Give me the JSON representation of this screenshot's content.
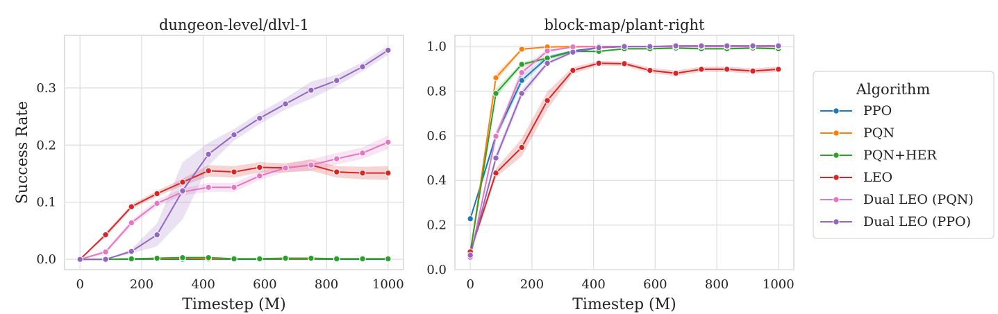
{
  "chart_data": [
    {
      "type": "line",
      "title": "dungeon-level/dlvl-1",
      "xlabel": "Timestep (M)",
      "ylabel": "Success Rate",
      "xlim": [
        -50,
        1050
      ],
      "ylim": [
        -0.018,
        0.392
      ],
      "xticks": [
        0,
        200,
        400,
        600,
        800,
        1000
      ],
      "yticks": [
        0.0,
        0.1,
        0.2,
        0.3
      ],
      "xtick_labels": [
        "0",
        "200",
        "400",
        "600",
        "800",
        "1000"
      ],
      "ytick_labels": [
        "0.0",
        "0.1",
        "0.2",
        "0.3"
      ],
      "grid": true,
      "x": [
        0,
        83,
        167,
        250,
        333,
        417,
        500,
        583,
        667,
        750,
        833,
        917,
        1000
      ],
      "series": [
        {
          "name": "PPO",
          "values": [
            0,
            0,
            0,
            0,
            0,
            0,
            0,
            0,
            0,
            0,
            0,
            0,
            0
          ],
          "band": [
            0,
            0,
            0,
            0,
            0,
            0,
            0,
            0,
            0,
            0,
            0,
            0,
            0
          ]
        },
        {
          "name": "PQN",
          "values": [
            0,
            0,
            0.001,
            0.001,
            0.002,
            0.001,
            0.001,
            0.001,
            0.001,
            0.001,
            0.001,
            0.001,
            0.001
          ],
          "band": [
            0,
            0,
            0.001,
            0.001,
            0.001,
            0.001,
            0.001,
            0.001,
            0.001,
            0.001,
            0.001,
            0.001,
            0.001
          ]
        },
        {
          "name": "PQN+HER",
          "values": [
            0,
            0,
            0.001,
            0.002,
            0.003,
            0.003,
            0.001,
            0.001,
            0.002,
            0.002,
            0.001,
            0.001,
            0.001
          ],
          "band": [
            0,
            0,
            0.001,
            0.001,
            0.002,
            0.002,
            0.001,
            0.001,
            0.001,
            0.001,
            0.001,
            0.001,
            0.001
          ]
        },
        {
          "name": "LEO",
          "values": [
            0,
            0.043,
            0.092,
            0.115,
            0.135,
            0.155,
            0.153,
            0.161,
            0.16,
            0.165,
            0.153,
            0.151,
            0.151
          ],
          "band": [
            0,
            0.004,
            0.004,
            0.005,
            0.006,
            0.01,
            0.01,
            0.009,
            0.008,
            0.01,
            0.01,
            0.011,
            0.012
          ]
        },
        {
          "name": "Dual LEO (PQN)",
          "values": [
            0,
            0.013,
            0.064,
            0.098,
            0.118,
            0.126,
            0.126,
            0.146,
            0.16,
            0.165,
            0.176,
            0.186,
            0.205
          ],
          "band": [
            0,
            0.004,
            0.005,
            0.006,
            0.006,
            0.008,
            0.008,
            0.007,
            0.007,
            0.01,
            0.01,
            0.01,
            0.012
          ]
        },
        {
          "name": "Dual LEO (PPO)",
          "values": [
            0,
            0,
            0.014,
            0.043,
            0.12,
            0.184,
            0.218,
            0.247,
            0.272,
            0.296,
            0.313,
            0.337,
            0.366
          ],
          "band": [
            0,
            0,
            0.004,
            0.02,
            0.05,
            0.02,
            0.01,
            0.01,
            0.01,
            0.015,
            0.01,
            0.008,
            0.008
          ]
        }
      ]
    },
    {
      "type": "line",
      "title": "block-map/plant-right",
      "xlabel": "Timestep (M)",
      "ylabel": "",
      "xlim": [
        -50,
        1050
      ],
      "ylim": [
        0.0,
        1.05
      ],
      "xticks": [
        0,
        200,
        400,
        600,
        800,
        1000
      ],
      "yticks": [
        0.0,
        0.2,
        0.4,
        0.6,
        0.8,
        1.0
      ],
      "xtick_labels": [
        "0",
        "200",
        "400",
        "600",
        "800",
        "1000"
      ],
      "ytick_labels": [
        "0.0",
        "0.2",
        "0.4",
        "0.6",
        "0.8",
        "1.0"
      ],
      "grid": true,
      "x": [
        0,
        83,
        167,
        250,
        333,
        417,
        500,
        583,
        667,
        750,
        833,
        917,
        1000
      ],
      "series": [
        {
          "name": "PPO",
          "values": [
            0.228,
            0.6,
            0.848,
            0.95,
            0.98,
            0.995,
            1.0,
            1.0,
            1.0,
            1.0,
            1.0,
            1.0,
            1.0
          ],
          "band": [
            0.005,
            0.02,
            0.02,
            0.01,
            0.005,
            0.003,
            0.002,
            0.002,
            0.002,
            0.002,
            0.002,
            0.002,
            0.002
          ]
        },
        {
          "name": "PQN",
          "values": [
            0.07,
            0.86,
            0.988,
            0.998,
            1.0,
            1.0,
            1.0,
            1.0,
            1.0,
            1.0,
            1.0,
            1.0,
            1.0
          ],
          "band": [
            0.005,
            0.02,
            0.005,
            0.002,
            0.002,
            0.002,
            0.002,
            0.002,
            0.002,
            0.002,
            0.002,
            0.002,
            0.002
          ]
        },
        {
          "name": "PQN+HER",
          "values": [
            0.08,
            0.79,
            0.92,
            0.948,
            0.978,
            0.978,
            0.99,
            0.99,
            0.993,
            0.99,
            0.99,
            0.993,
            0.99
          ],
          "band": [
            0.005,
            0.02,
            0.01,
            0.008,
            0.005,
            0.005,
            0.004,
            0.004,
            0.004,
            0.004,
            0.004,
            0.004,
            0.004
          ]
        },
        {
          "name": "LEO",
          "values": [
            0.08,
            0.433,
            0.548,
            0.758,
            0.893,
            0.925,
            0.923,
            0.893,
            0.88,
            0.898,
            0.898,
            0.89,
            0.898
          ],
          "band": [
            0.01,
            0.02,
            0.04,
            0.04,
            0.015,
            0.01,
            0.01,
            0.012,
            0.012,
            0.012,
            0.012,
            0.012,
            0.012
          ]
        },
        {
          "name": "Dual LEO (PQN)",
          "values": [
            0.055,
            0.598,
            0.883,
            0.98,
            0.998,
            1.0,
            1.0,
            1.0,
            1.0,
            1.0,
            1.0,
            1.0,
            1.0
          ],
          "band": [
            0.005,
            0.02,
            0.02,
            0.01,
            0.003,
            0.002,
            0.002,
            0.002,
            0.002,
            0.002,
            0.002,
            0.002,
            0.002
          ]
        },
        {
          "name": "Dual LEO (PPO)",
          "values": [
            0.065,
            0.5,
            0.79,
            0.925,
            0.975,
            0.995,
            1.0,
            1.0,
            1.003,
            1.003,
            1.003,
            1.003,
            1.003
          ],
          "band": [
            0.005,
            0.02,
            0.02,
            0.01,
            0.005,
            0.003,
            0.002,
            0.002,
            0.002,
            0.002,
            0.002,
            0.002,
            0.002
          ]
        }
      ]
    }
  ],
  "legend": {
    "title": "Algorithm",
    "placement": "right",
    "entries": [
      {
        "label": "PPO",
        "color": "#1f77b4"
      },
      {
        "label": "PQN",
        "color": "#ff7f0e"
      },
      {
        "label": "PQN+HER",
        "color": "#2ca02c"
      },
      {
        "label": "LEO",
        "color": "#d62728"
      },
      {
        "label": "Dual LEO (PQN)",
        "color": "#e377c2"
      },
      {
        "label": "Dual LEO (PPO)",
        "color": "#9467bd"
      }
    ]
  }
}
